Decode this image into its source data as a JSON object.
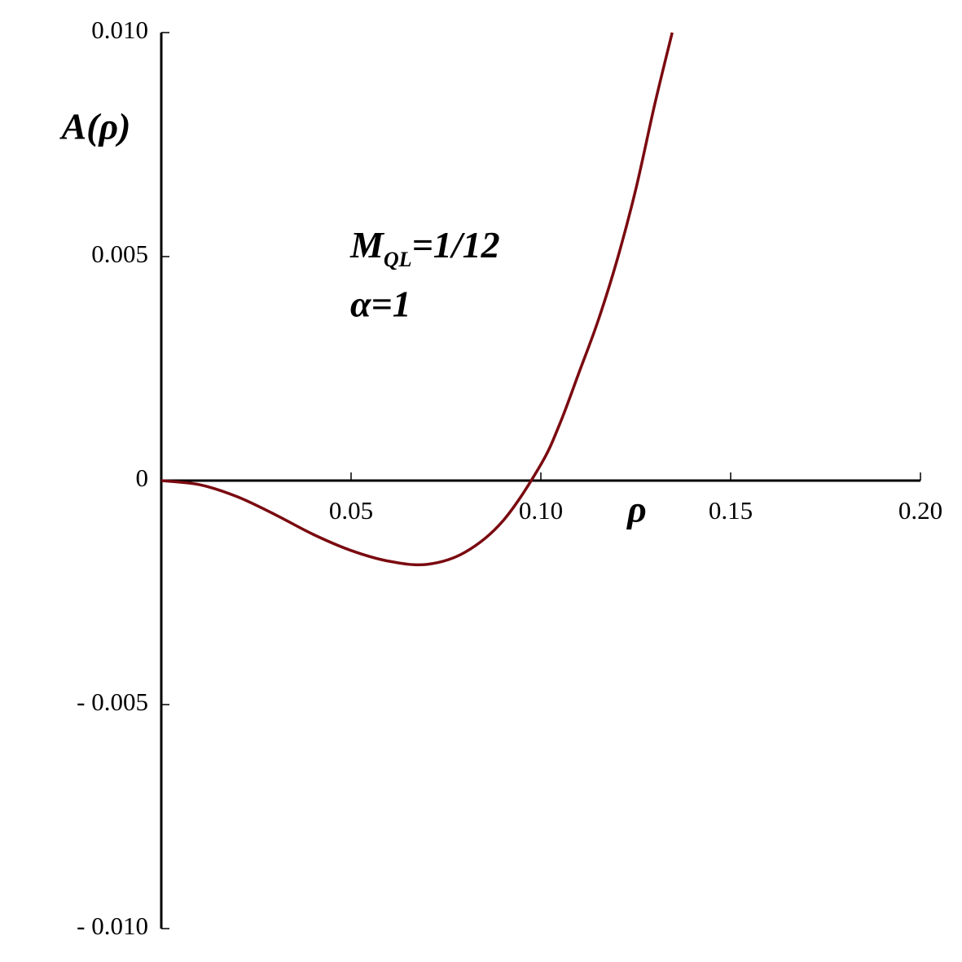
{
  "chart_data": {
    "type": "line",
    "x_label": "ρ",
    "y_label": "A(ρ)",
    "annotation": {
      "base": "M",
      "subscript": "QL",
      "rest": "=1/12"
    },
    "annotation2": "α=1",
    "x": [
      0,
      0.01,
      0.02,
      0.03,
      0.04,
      0.05,
      0.06,
      0.07,
      0.08,
      0.09,
      0.1,
      0.105,
      0.11,
      0.115,
      0.12,
      0.125,
      0.13,
      0.1346
    ],
    "series": [
      {
        "color": "#7a0a10",
        "values": [
          0,
          -9e-05,
          -0.00036,
          -0.00076,
          -0.0012,
          -0.00156,
          -0.0018,
          -0.00187,
          -0.0016,
          -0.0009,
          0.00036,
          0.00127,
          0.0024,
          0.00355,
          0.0049,
          0.0065,
          0.0084,
          0.01
        ]
      }
    ],
    "xlim": [
      0,
      {
        "value": 0.2,
        "label": "0.20"
      }
    ],
    "ylim": [
      {
        "value": -0.01,
        "label": "- 0.010"
      },
      {
        "value": 0.01,
        "label": "0.010"
      }
    ],
    "xticks": [
      0.05,
      {
        "value": 0.1,
        "label": "0.10"
      },
      0.15,
      {
        "value": 0.2,
        "label": "0.20"
      }
    ],
    "yticks": [
      {
        "value": -0.01,
        "label": "- 0.010"
      },
      {
        "value": -0.005,
        "label": "- 0.005"
      },
      0,
      0.005,
      {
        "value": 0.01,
        "label": "0.010"
      }
    ]
  }
}
